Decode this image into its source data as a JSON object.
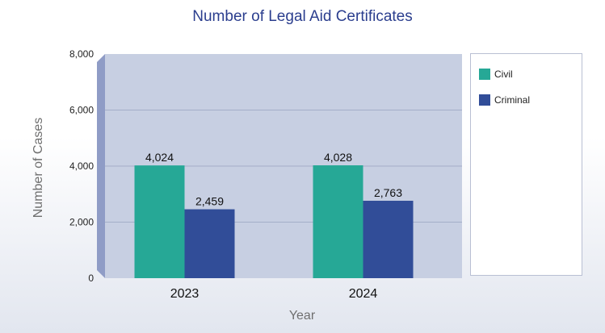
{
  "chart_data": {
    "type": "bar",
    "title": "Number of Legal Aid Certificates",
    "xlabel": "Year",
    "ylabel": "Number of Cases",
    "categories": [
      "2023",
      "2024"
    ],
    "series": [
      {
        "name": "Civil",
        "values": [
          4024,
          4028
        ],
        "value_labels": [
          "4,024",
          "4,028"
        ],
        "color": "#26a896"
      },
      {
        "name": "Criminal",
        "values": [
          2459,
          2763
        ],
        "value_labels": [
          "2,459",
          "2,763"
        ],
        "color": "#314d98"
      }
    ],
    "ylim": [
      0,
      8000
    ],
    "yticks": [
      0,
      2000,
      4000,
      6000,
      8000
    ],
    "ytick_labels": [
      "0",
      "2,000",
      "4,000",
      "6,000",
      "8,000"
    ],
    "grid": true,
    "legend_position": "right",
    "colors": {
      "plot_background": "#c7cfe2",
      "side_wall": "#8f9cc6",
      "gridline": "#a4aec8",
      "title": "#2b3e8e",
      "axis_label": "#6f6f6f"
    }
  }
}
